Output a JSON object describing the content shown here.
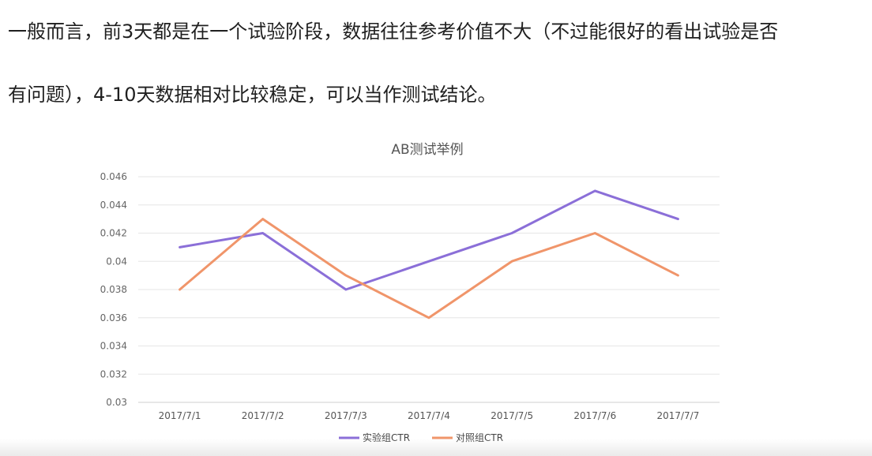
{
  "paragraph": {
    "line1": "一般而言，前3天都是在一个试验阶段，数据往往参考价值不大（不过能很好的看出试验是否",
    "line2": "有问题），4-10天数据相对比较稳定，可以当作测试结论。"
  },
  "chart_data": {
    "type": "line",
    "title": "AB测试举例",
    "categories": [
      "2017/7/1",
      "2017/7/2",
      "2017/7/3",
      "2017/7/4",
      "2017/7/5",
      "2017/7/6",
      "2017/7/7"
    ],
    "ylim": [
      0.03,
      0.046
    ],
    "yticks": [
      "0.03",
      "0.032",
      "0.034",
      "0.036",
      "0.038",
      "0.04",
      "0.042",
      "0.044",
      "0.046"
    ],
    "grid": true,
    "legend_position": "bottom-center",
    "series": [
      {
        "name": "实验组CTR",
        "color": "#8b6fd8",
        "values": [
          0.041,
          0.042,
          0.038,
          0.04,
          0.042,
          0.045,
          0.043
        ]
      },
      {
        "name": "对照组CTR",
        "color": "#f0956a",
        "values": [
          0.038,
          0.043,
          0.039,
          0.036,
          0.04,
          0.042,
          0.039
        ]
      }
    ]
  }
}
